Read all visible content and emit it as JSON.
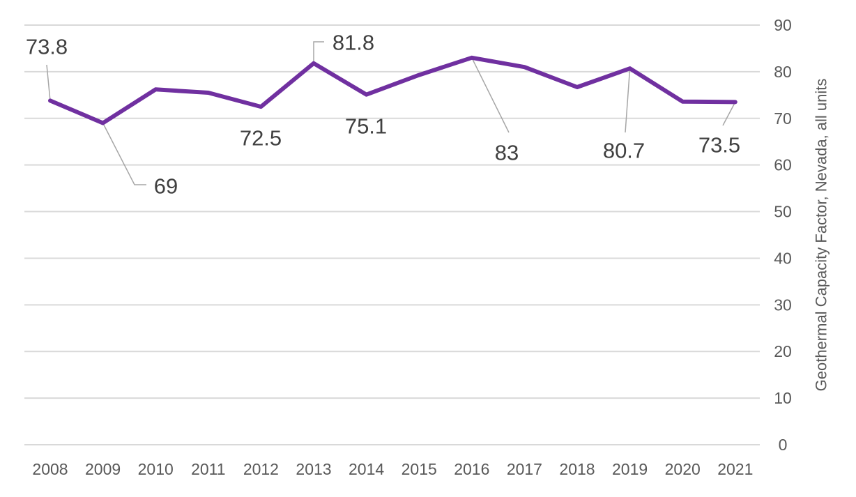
{
  "chart_data": {
    "type": "line",
    "title": "",
    "xlabel": "",
    "ylabel": "Geothermal Capacity Factor, Nevada, all units",
    "y_axis_side": "right",
    "ylim": [
      0,
      90
    ],
    "ytick_step": 10,
    "grid": true,
    "categories": [
      "2008",
      "2009",
      "2010",
      "2011",
      "2012",
      "2013",
      "2014",
      "2015",
      "2016",
      "2017",
      "2018",
      "2019",
      "2020",
      "2021"
    ],
    "series": [
      {
        "name": "Geothermal Capacity Factor, Nevada, all units",
        "color": "#7030A0",
        "values": [
          73.8,
          69.0,
          76.2,
          75.5,
          72.5,
          81.8,
          75.1,
          79.3,
          83.0,
          81.0,
          76.7,
          80.7,
          73.6,
          73.5
        ]
      }
    ],
    "data_labels": [
      {
        "index": 0,
        "text": "73.8"
      },
      {
        "index": 1,
        "text": "69"
      },
      {
        "index": 4,
        "text": "72.5"
      },
      {
        "index": 5,
        "text": "81.8"
      },
      {
        "index": 6,
        "text": "75.1"
      },
      {
        "index": 8,
        "text": "83"
      },
      {
        "index": 11,
        "text": "80.7"
      },
      {
        "index": 13,
        "text": "73.5"
      }
    ]
  }
}
